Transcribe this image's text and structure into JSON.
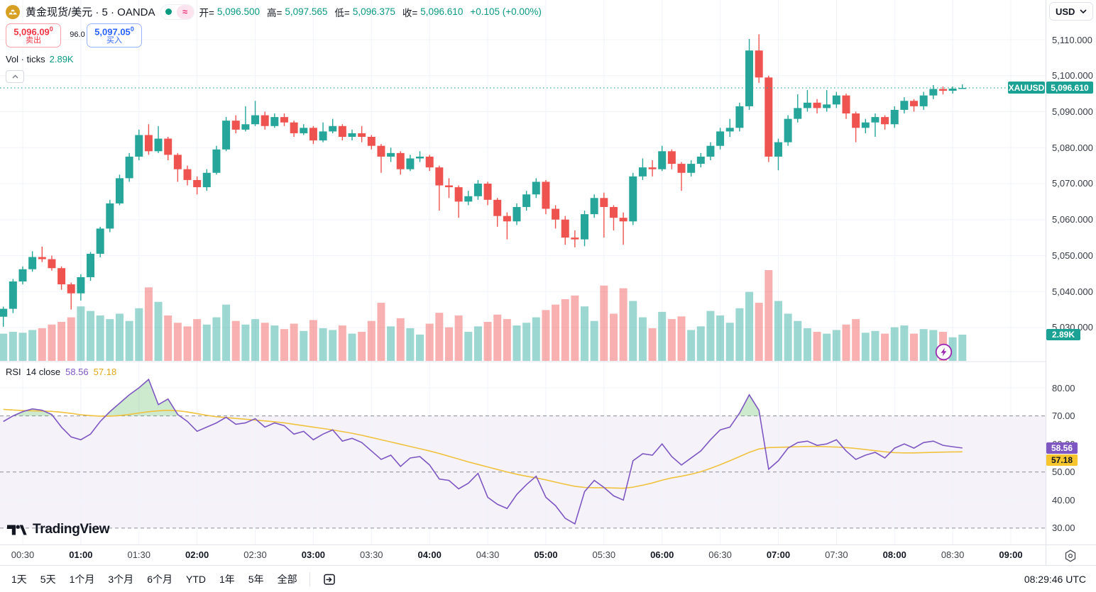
{
  "header": {
    "symbol_title": "黄金现货/美元 · 5 · OANDA",
    "status_approx": "≈",
    "ohlc": {
      "open_label": "开=",
      "open": "5,096.500",
      "high_label": "高=",
      "high": "5,097.565",
      "low_label": "低=",
      "low": "5,096.375",
      "close_label": "收=",
      "close": "5,096.610",
      "change": "+0.105 (+0.00%)"
    },
    "sell": {
      "price": "5,096.09",
      "pip": "0",
      "label": "卖出"
    },
    "spread": "96.0",
    "buy": {
      "price": "5,097.05",
      "pip": "0",
      "label": "买入"
    },
    "volume_row": {
      "label": "Vol · ticks",
      "value": "2.89K"
    }
  },
  "price_axis": {
    "currency": "USD",
    "labels": [
      {
        "text": "5,110.000",
        "price": 5110
      },
      {
        "text": "5,100.000",
        "price": 5100
      },
      {
        "text": "5,090.000",
        "price": 5090
      },
      {
        "text": "5,080.000",
        "price": 5080
      },
      {
        "text": "5,070.000",
        "price": 5070
      },
      {
        "text": "5,060.000",
        "price": 5060
      },
      {
        "text": "5,050.000",
        "price": 5050
      },
      {
        "text": "5,040.000",
        "price": 5040
      },
      {
        "text": "5,030.000",
        "price": 5030
      }
    ],
    "last_price": {
      "symbol": "XAUUSD",
      "value": "5,096.610"
    },
    "volume_label": "2.89K"
  },
  "rsi_pane": {
    "title": "RSI",
    "params": "14 close",
    "value": "58.56",
    "ma_value": "57.18",
    "axis_labels": [
      {
        "text": "80.00",
        "v": 80,
        "dashed": false
      },
      {
        "text": "70.00",
        "v": 70,
        "dashed": true
      },
      {
        "text": "60.00",
        "v": 60,
        "dashed": false
      },
      {
        "text": "50.00",
        "v": 50,
        "dashed": true
      },
      {
        "text": "40.00",
        "v": 40,
        "dashed": false
      },
      {
        "text": "30.00",
        "v": 30,
        "dashed": true
      }
    ]
  },
  "time_axis": {
    "labels": [
      {
        "text": "00:30",
        "min": 30
      },
      {
        "text": "01:00",
        "min": 60
      },
      {
        "text": "01:30",
        "min": 90
      },
      {
        "text": "02:00",
        "min": 120
      },
      {
        "text": "02:30",
        "min": 150
      },
      {
        "text": "03:00",
        "min": 180
      },
      {
        "text": "03:30",
        "min": 210
      },
      {
        "text": "04:00",
        "min": 240
      },
      {
        "text": "04:30",
        "min": 270
      },
      {
        "text": "05:00",
        "min": 300
      },
      {
        "text": "05:30",
        "min": 330
      },
      {
        "text": "06:00",
        "min": 360
      },
      {
        "text": "06:30",
        "min": 390
      },
      {
        "text": "07:00",
        "min": 420
      },
      {
        "text": "07:30",
        "min": 450
      },
      {
        "text": "08:00",
        "min": 480
      },
      {
        "text": "08:30",
        "min": 510
      },
      {
        "text": "09:00",
        "min": 540
      }
    ]
  },
  "toolbar": {
    "ranges": [
      "1天",
      "5天",
      "1个月",
      "3个月",
      "6个月",
      "YTD",
      "1年",
      "5年",
      "全部"
    ],
    "clock": "08:29:46 UTC"
  },
  "logo": "TradingView",
  "colors": {
    "up": "#26a69a",
    "down": "#ef5350",
    "up_volume": "rgba(38,166,154,0.45)",
    "down_volume": "rgba(239,83,80,0.45)",
    "last_price_bg": "#1ca294",
    "ohlc_value": "#089981",
    "sell_red": "#f23645",
    "buy_blue": "#2962ff",
    "rsi_line": "#7e57c2",
    "rsi_ma": "#f0c23e",
    "rsi_ma_tag": "#f7c52d",
    "rsi_band": "rgba(126,87,194,0.08)",
    "overbought_fill": "rgba(76,175,80,0.28)",
    "flash_icon": "#9c27b0",
    "grid": "#f0f3fa",
    "axis_border": "#e0e3eb"
  },
  "chart_data": {
    "type": "candlestick+volume+rsi",
    "symbol": "XAUUSD",
    "exchange": "OANDA",
    "interval_minutes": 5,
    "price_axis_visible_range": [
      5025,
      5113
    ],
    "rsi_axis_visible_range": [
      25,
      88
    ],
    "rsi_levels": {
      "overbought": 70,
      "middle": 50,
      "oversold": 30
    },
    "last_price": 5096.61,
    "last_volume_k": 2.89,
    "candles_format": [
      "time",
      "open",
      "high",
      "low",
      "close",
      "volume_k"
    ],
    "candles": [
      [
        "00:20",
        5033.0,
        5035.8,
        5030.2,
        5035.2,
        3.0
      ],
      [
        "00:25",
        5035.2,
        5043.5,
        5034.0,
        5042.8,
        3.2
      ],
      [
        "00:30",
        5042.8,
        5047.0,
        5042.0,
        5046.2,
        3.1
      ],
      [
        "00:35",
        5046.2,
        5051.2,
        5045.5,
        5049.6,
        3.4
      ],
      [
        "00:40",
        5049.6,
        5052.5,
        5048.2,
        5049.0,
        3.6
      ],
      [
        "00:45",
        5049.0,
        5050.0,
        5045.8,
        5046.5,
        4.0
      ],
      [
        "00:50",
        5046.5,
        5047.0,
        5040.5,
        5042.0,
        4.3
      ],
      [
        "00:55",
        5042.0,
        5042.5,
        5035.0,
        5039.5,
        4.8
      ],
      [
        "01:00",
        5039.5,
        5044.8,
        5037.5,
        5044.0,
        6.0
      ],
      [
        "01:05",
        5044.0,
        5051.0,
        5043.0,
        5050.5,
        5.5
      ],
      [
        "01:10",
        5050.5,
        5058.0,
        5049.5,
        5057.5,
        5.0
      ],
      [
        "01:15",
        5057.5,
        5065.5,
        5056.5,
        5064.5,
        4.6
      ],
      [
        "01:20",
        5064.5,
        5072.5,
        5064.0,
        5071.5,
        5.2
      ],
      [
        "01:25",
        5071.5,
        5078.5,
        5070.5,
        5077.5,
        4.4
      ],
      [
        "01:30",
        5077.5,
        5085.0,
        5076.5,
        5083.5,
        5.8
      ],
      [
        "01:35",
        5083.5,
        5086.5,
        5078.0,
        5079.0,
        8.1
      ],
      [
        "01:40",
        5079.0,
        5086.0,
        5078.5,
        5082.5,
        6.5
      ],
      [
        "01:45",
        5082.5,
        5083.0,
        5076.5,
        5078.0,
        5.0
      ],
      [
        "01:50",
        5078.0,
        5078.5,
        5070.5,
        5074.0,
        4.2
      ],
      [
        "01:55",
        5074.0,
        5075.0,
        5069.5,
        5071.0,
        3.8
      ],
      [
        "02:00",
        5071.0,
        5072.0,
        5067.0,
        5069.0,
        4.6
      ],
      [
        "02:05",
        5069.0,
        5074.0,
        5068.0,
        5073.0,
        4.0
      ],
      [
        "02:10",
        5073.0,
        5080.5,
        5072.5,
        5079.5,
        4.8
      ],
      [
        "02:15",
        5079.5,
        5088.5,
        5079.0,
        5087.5,
        6.2
      ],
      [
        "02:20",
        5087.5,
        5089.0,
        5084.0,
        5085.0,
        4.4
      ],
      [
        "02:25",
        5085.0,
        5091.5,
        5084.5,
        5086.5,
        4.0
      ],
      [
        "02:30",
        5086.5,
        5093.0,
        5086.0,
        5089.0,
        4.6
      ],
      [
        "02:35",
        5089.0,
        5090.0,
        5085.0,
        5086.0,
        4.2
      ],
      [
        "02:40",
        5086.0,
        5089.5,
        5085.5,
        5088.5,
        3.9
      ],
      [
        "02:45",
        5088.5,
        5089.5,
        5086.0,
        5087.0,
        3.5
      ],
      [
        "02:50",
        5087.0,
        5087.5,
        5083.0,
        5084.0,
        4.1
      ],
      [
        "02:55",
        5084.0,
        5086.5,
        5083.5,
        5085.5,
        3.3
      ],
      [
        "03:00",
        5085.5,
        5086.0,
        5081.0,
        5082.0,
        4.5
      ],
      [
        "03:05",
        5082.0,
        5087.0,
        5081.5,
        5084.5,
        3.6
      ],
      [
        "03:10",
        5084.5,
        5088.0,
        5084.0,
        5086.0,
        3.4
      ],
      [
        "03:15",
        5086.0,
        5086.5,
        5082.0,
        5083.0,
        3.9
      ],
      [
        "03:20",
        5083.0,
        5085.0,
        5082.0,
        5084.0,
        3.0
      ],
      [
        "03:25",
        5084.0,
        5086.0,
        5081.5,
        5083.0,
        3.2
      ],
      [
        "03:30",
        5083.0,
        5083.5,
        5079.5,
        5080.5,
        4.4
      ],
      [
        "03:35",
        5080.5,
        5081.0,
        5073.0,
        5077.5,
        6.4
      ],
      [
        "03:40",
        5077.5,
        5080.0,
        5076.0,
        5078.5,
        3.8
      ],
      [
        "03:45",
        5078.5,
        5079.0,
        5072.5,
        5074.0,
        4.7
      ],
      [
        "03:50",
        5074.0,
        5078.0,
        5073.5,
        5077.0,
        3.6
      ],
      [
        "03:55",
        5077.0,
        5079.0,
        5076.0,
        5077.5,
        2.9
      ],
      [
        "04:00",
        5077.5,
        5078.0,
        5073.5,
        5074.5,
        4.1
      ],
      [
        "04:05",
        5074.5,
        5075.0,
        5062.5,
        5069.5,
        5.3
      ],
      [
        "04:10",
        5069.5,
        5071.5,
        5066.0,
        5069.0,
        3.7
      ],
      [
        "04:15",
        5069.0,
        5069.5,
        5060.5,
        5065.0,
        5.0
      ],
      [
        "04:20",
        5065.0,
        5068.0,
        5064.0,
        5066.5,
        3.2
      ],
      [
        "04:25",
        5066.5,
        5071.0,
        5065.5,
        5070.0,
        3.8
      ],
      [
        "04:30",
        5070.0,
        5070.5,
        5064.0,
        5065.5,
        4.3
      ],
      [
        "04:35",
        5065.5,
        5066.0,
        5058.0,
        5061.0,
        5.1
      ],
      [
        "04:40",
        5061.0,
        5062.0,
        5054.5,
        5059.5,
        4.6
      ],
      [
        "04:45",
        5059.5,
        5064.5,
        5058.5,
        5063.5,
        3.9
      ],
      [
        "04:50",
        5063.5,
        5068.0,
        5062.5,
        5067.0,
        4.2
      ],
      [
        "04:55",
        5067.0,
        5071.5,
        5066.0,
        5070.5,
        4.8
      ],
      [
        "05:00",
        5070.5,
        5071.0,
        5061.5,
        5063.0,
        5.6
      ],
      [
        "05:05",
        5063.0,
        5064.0,
        5057.5,
        5060.0,
        6.2
      ],
      [
        "05:10",
        5060.0,
        5061.0,
        5053.0,
        5055.0,
        6.8
      ],
      [
        "05:15",
        5055.0,
        5057.0,
        5052.3,
        5054.5,
        7.2
      ],
      [
        "05:20",
        5054.5,
        5062.5,
        5052.6,
        5061.5,
        6.0
      ],
      [
        "05:25",
        5061.5,
        5067.0,
        5060.5,
        5066.0,
        4.4
      ],
      [
        "05:30",
        5066.0,
        5067.5,
        5055.0,
        5063.5,
        8.3
      ],
      [
        "05:35",
        5063.5,
        5064.0,
        5057.0,
        5060.5,
        5.2
      ],
      [
        "05:40",
        5060.5,
        5062.0,
        5053.0,
        5059.5,
        8.0
      ],
      [
        "05:45",
        5059.5,
        5073.0,
        5058.5,
        5072.0,
        6.6
      ],
      [
        "05:50",
        5072.0,
        5077.0,
        5071.0,
        5074.5,
        4.8
      ],
      [
        "05:55",
        5074.5,
        5076.5,
        5072.0,
        5074.0,
        3.6
      ],
      [
        "06:00",
        5074.0,
        5080.5,
        5073.5,
        5079.0,
        5.4
      ],
      [
        "06:05",
        5079.0,
        5079.5,
        5074.0,
        5075.5,
        4.6
      ],
      [
        "06:10",
        5075.5,
        5076.0,
        5068.0,
        5073.0,
        4.9
      ],
      [
        "06:15",
        5073.0,
        5076.5,
        5072.0,
        5075.5,
        3.4
      ],
      [
        "06:20",
        5075.5,
        5078.5,
        5074.5,
        5077.5,
        3.8
      ],
      [
        "06:25",
        5077.5,
        5081.5,
        5076.5,
        5080.5,
        5.5
      ],
      [
        "06:30",
        5080.5,
        5085.5,
        5079.5,
        5084.5,
        5.0
      ],
      [
        "06:35",
        5084.5,
        5088.0,
        5083.0,
        5085.5,
        4.2
      ],
      [
        "06:40",
        5085.5,
        5092.5,
        5084.5,
        5091.5,
        5.8
      ],
      [
        "06:45",
        5091.5,
        5110.2,
        5090.5,
        5107.0,
        7.6
      ],
      [
        "06:50",
        5107.0,
        5111.5,
        5098.0,
        5099.5,
        6.4
      ],
      [
        "06:55",
        5099.5,
        5100.0,
        5076.0,
        5077.5,
        10.0
      ],
      [
        "07:00",
        5077.5,
        5082.5,
        5073.7,
        5081.5,
        6.6
      ],
      [
        "07:05",
        5081.5,
        5089.0,
        5080.5,
        5088.0,
        5.2
      ],
      [
        "07:10",
        5088.0,
        5094.8,
        5087.0,
        5091.0,
        4.4
      ],
      [
        "07:15",
        5091.0,
        5096.0,
        5090.0,
        5092.5,
        3.6
      ],
      [
        "07:20",
        5092.5,
        5093.5,
        5089.5,
        5091.0,
        3.2
      ],
      [
        "07:25",
        5091.0,
        5096.0,
        5090.0,
        5092.0,
        3.0
      ],
      [
        "07:30",
        5092.0,
        5095.5,
        5091.0,
        5094.5,
        3.4
      ],
      [
        "07:35",
        5094.5,
        5095.0,
        5088.0,
        5089.5,
        4.0
      ],
      [
        "07:40",
        5089.5,
        5090.0,
        5081.5,
        5085.5,
        4.6
      ],
      [
        "07:45",
        5085.5,
        5088.0,
        5084.0,
        5087.0,
        3.1
      ],
      [
        "07:50",
        5087.0,
        5089.5,
        5083.0,
        5088.5,
        3.3
      ],
      [
        "07:55",
        5088.5,
        5089.0,
        5085.0,
        5086.5,
        3.0
      ],
      [
        "08:00",
        5086.5,
        5091.5,
        5085.5,
        5090.5,
        3.7
      ],
      [
        "08:05",
        5090.5,
        5094.0,
        5089.5,
        5093.0,
        3.9
      ],
      [
        "08:10",
        5093.0,
        5093.5,
        5090.0,
        5091.5,
        3.0
      ],
      [
        "08:15",
        5091.5,
        5095.5,
        5090.5,
        5094.5,
        3.5
      ],
      [
        "08:20",
        5094.5,
        5097.4,
        5093.5,
        5096.3,
        3.4
      ],
      [
        "08:25",
        5096.3,
        5097.0,
        5094.8,
        5095.8,
        3.2
      ],
      [
        "08:30",
        5095.8,
        5097.0,
        5095.0,
        5096.4,
        2.6
      ],
      [
        "08:35",
        5096.5,
        5097.565,
        5096.375,
        5096.61,
        2.89
      ]
    ],
    "rsi_period": 14,
    "rsi": [
      68,
      70,
      71.5,
      72.5,
      72,
      70.5,
      66,
      62.5,
      61.5,
      63.5,
      68,
      71.5,
      74.5,
      77.5,
      80,
      83,
      74,
      76,
      70.5,
      68,
      64.5,
      66,
      67.5,
      69.5,
      67,
      67.5,
      69,
      66,
      67.5,
      66.5,
      63.5,
      64.5,
      61.5,
      63.5,
      65,
      61,
      62,
      60.5,
      57.5,
      54.5,
      56,
      52,
      55,
      55.5,
      52.5,
      47.5,
      47,
      44,
      46,
      49.5,
      41,
      38.5,
      37,
      42,
      45.5,
      48.5,
      41,
      38,
      33.5,
      31.5,
      43,
      47,
      44.5,
      41.5,
      40,
      54,
      56.5,
      56,
      60,
      55.5,
      52.5,
      55,
      57.5,
      61.5,
      65,
      66,
      71,
      77.5,
      72,
      51,
      54,
      58.5,
      60.5,
      61,
      59.5,
      60,
      61.5,
      57.5,
      54.5,
      56,
      57,
      55,
      58.5,
      60,
      58.5,
      60.5,
      61,
      59.5,
      59,
      58.56
    ],
    "rsi_ma": [
      72.3,
      72.1,
      71.9,
      71.8,
      71.7,
      71.6,
      71.3,
      70.9,
      70.4,
      70.1,
      69.9,
      69.9,
      70.1,
      70.5,
      71,
      71.5,
      71.8,
      72,
      71.8,
      71.4,
      70.8,
      70.2,
      69.7,
      69.4,
      69.1,
      68.8,
      68.5,
      68.2,
      67.9,
      67.5,
      67,
      66.5,
      66,
      65.5,
      65,
      64.4,
      63.8,
      63.1,
      62.3,
      61.5,
      60.7,
      59.9,
      59.1,
      58.3,
      57.5,
      56.6,
      55.6,
      54.6,
      53.6,
      52.7,
      51.8,
      50.9,
      50,
      49.2,
      48.5,
      47.9,
      47.2,
      46.4,
      45.6,
      44.9,
      44.5,
      44.4,
      44.4,
      44.3,
      44.2,
      44.6,
      45.3,
      46.1,
      47.1,
      47.9,
      48.5,
      49.2,
      50.1,
      51.3,
      52.6,
      54,
      55.5,
      57,
      58.2,
      58.7,
      58.8,
      58.9,
      59,
      59.1,
      59.1,
      59,
      58.9,
      58.7,
      58.4,
      58,
      57.6,
      57.2,
      56.9,
      56.8,
      56.8,
      56.9,
      57,
      57.1,
      57.15,
      57.18
    ]
  }
}
